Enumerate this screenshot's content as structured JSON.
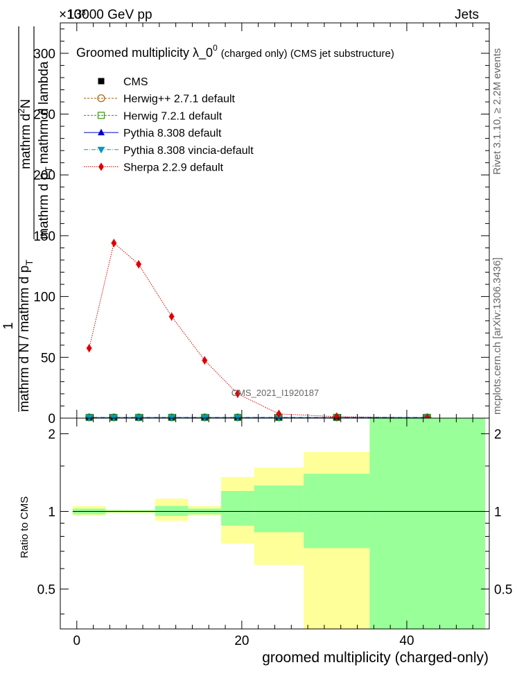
{
  "header": {
    "left": "13000 GeV pp",
    "right": "Jets",
    "exponent": "×10³"
  },
  "side_labels": {
    "rivet": "Rivet 3.1.10, ≥ 2.2M events",
    "mcplots": "mcplots.cern.ch [arXiv:1306.3436]"
  },
  "watermark": "CMS_2021_I1920187",
  "colors": {
    "cms": "#000000",
    "herwigpp": "#b35900",
    "herwig7": "#339900",
    "pythia": "#0000cc",
    "vincia": "#0099bb",
    "sherpa": "#dd0000",
    "band_yellow": "#ffff99",
    "band_green": "#99ff99"
  },
  "chart_data": [
    {
      "type": "line",
      "title": "Groomed multiplicity  λ_0⁰ (charged only) (CMS jet substructure)",
      "title_main": "Groomed multiplicity  λ_0",
      "title_sup": "0",
      "title_tail": "(charged only) (CMS jet substructure)",
      "ylabel_lines": [
        "1",
        "mathrm d N / mathrm d p_T",
        "mathrm d²N",
        "mathrm d p_T mathrm d lambda"
      ],
      "ylabel_parts": {
        "one": "1",
        "den": "mathrm d N / mathrm d p",
        "den_sub": "T",
        "num": "mathrm d",
        "num_sup": "2",
        "num_tail": "N",
        "den2": "mathrm d p",
        "den2_sub": "T",
        "den2_tail": "mathrm d lambda"
      },
      "ylim": [
        0,
        325
      ],
      "y_scale_factor": "×10³",
      "xlim": [
        -2,
        50
      ],
      "yticks": [
        0,
        50,
        100,
        150,
        200,
        250,
        300
      ],
      "ytick_labels": [
        "0",
        "50",
        "100",
        "150",
        "200",
        "250",
        "300"
      ],
      "legend": {
        "placement": "top-left",
        "entries": [
          {
            "name": "CMS",
            "color": "#000000",
            "marker": "square",
            "line": "none"
          },
          {
            "name": "Herwig++ 2.7.1 default",
            "color": "#b35900",
            "marker": "circle-open",
            "line": "dashed"
          },
          {
            "name": "Herwig 7.2.1 default",
            "color": "#339900",
            "marker": "square-open",
            "line": "dashed"
          },
          {
            "name": "Pythia 8.308 default",
            "color": "#0000cc",
            "marker": "triangle-up",
            "line": "solid"
          },
          {
            "name": "Pythia 8.308 vincia-default",
            "color": "#0099bb",
            "marker": "triangle-down",
            "line": "dashdot"
          },
          {
            "name": "Sherpa 2.2.9 default",
            "color": "#dd0000",
            "marker": "diamond",
            "line": "dotted"
          }
        ]
      },
      "bins": [
        [
          -0.5,
          3.5
        ],
        [
          3.5,
          5.5
        ],
        [
          5.5,
          9.5
        ],
        [
          9.5,
          13.5
        ],
        [
          13.5,
          17.5
        ],
        [
          17.5,
          21.5
        ],
        [
          21.5,
          27.5
        ],
        [
          27.5,
          35.5
        ],
        [
          35.5,
          49.5
        ]
      ],
      "x": [
        1.5,
        4.5,
        7.5,
        11.5,
        15.5,
        19.5,
        24.5,
        31.5,
        42.5
      ],
      "series": [
        {
          "name": "CMS",
          "values": [
            0.6,
            0.6,
            0.6,
            0.6,
            0.6,
            0.6,
            0.6,
            0.6,
            0.6
          ]
        },
        {
          "name": "Herwig++ 2.7.1 default",
          "values": [
            0.6,
            0.6,
            0.6,
            0.6,
            0.6,
            0.6,
            0.6,
            0.6,
            0.6
          ]
        },
        {
          "name": "Herwig 7.2.1 default",
          "values": [
            0.6,
            0.6,
            0.6,
            0.6,
            0.6,
            0.6,
            0.6,
            0.6,
            0.6
          ]
        },
        {
          "name": "Pythia 8.308 default",
          "values": [
            0.6,
            0.6,
            0.6,
            0.6,
            0.6,
            0.6,
            0.6,
            0.6,
            0.6
          ]
        },
        {
          "name": "Pythia 8.308 vincia-default",
          "values": [
            0.6,
            0.6,
            0.6,
            0.6,
            0.6,
            0.6,
            0.6,
            0.6,
            0.6
          ]
        },
        {
          "name": "Sherpa 2.2.9 default",
          "values": [
            57.5,
            144,
            126.5,
            83.5,
            47.5,
            20,
            3.5,
            1.2,
            0.3
          ]
        }
      ]
    },
    {
      "type": "area",
      "ylabel": "Ratio to CMS",
      "xlabel": "groomed multiplicity (charged-only)",
      "ylim": [
        0.35,
        2.3
      ],
      "xlim": [
        -2,
        50
      ],
      "yticks": [
        0.5,
        1,
        2
      ],
      "ytick_labels": [
        "0.5",
        "1",
        "2"
      ],
      "xticks": [
        0,
        20,
        40
      ],
      "xtick_labels": [
        "0",
        "20",
        "40"
      ],
      "reference_line": 1,
      "bins": [
        [
          -0.5,
          3.5
        ],
        [
          3.5,
          5.5
        ],
        [
          5.5,
          9.5
        ],
        [
          9.5,
          13.5
        ],
        [
          13.5,
          17.5
        ],
        [
          17.5,
          21.5
        ],
        [
          21.5,
          27.5
        ],
        [
          27.5,
          35.5
        ],
        [
          35.5,
          49.5
        ]
      ],
      "bands": [
        {
          "name": "yellow",
          "lower": [
            0.96,
            0.985,
            0.985,
            0.92,
            0.96,
            0.75,
            0.62,
            0.35,
            0.35
          ],
          "upper": [
            1.05,
            1.02,
            1.015,
            1.12,
            1.05,
            1.36,
            1.48,
            1.7,
            2.3
          ]
        },
        {
          "name": "green",
          "lower": [
            0.975,
            0.99,
            0.99,
            0.96,
            0.975,
            0.88,
            0.83,
            0.72,
            0.35
          ],
          "upper": [
            1.025,
            1.01,
            1.01,
            1.05,
            1.025,
            1.2,
            1.26,
            1.4,
            2.3
          ]
        }
      ]
    }
  ]
}
